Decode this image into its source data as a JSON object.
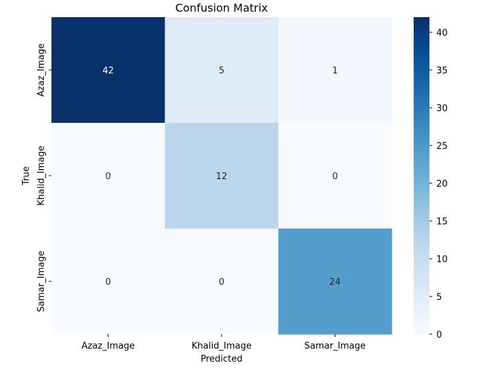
{
  "chart_data": {
    "type": "heatmap",
    "title": "Confusion Matrix",
    "xlabel": "Predicted",
    "ylabel": "True",
    "x_categories": [
      "Azaz_Image",
      "Khalid_Image",
      "Samar_Image"
    ],
    "y_categories": [
      "Azaz_Image",
      "Khalid_Image",
      "Samar_Image"
    ],
    "values": [
      [
        42,
        5,
        1
      ],
      [
        0,
        12,
        0
      ],
      [
        0,
        0,
        24
      ]
    ],
    "colormap": "Blues",
    "vmin": 0,
    "vmax": 42,
    "colorbar_ticks": [
      0,
      5,
      10,
      15,
      20,
      25,
      30,
      35,
      40
    ],
    "annotations": true
  }
}
